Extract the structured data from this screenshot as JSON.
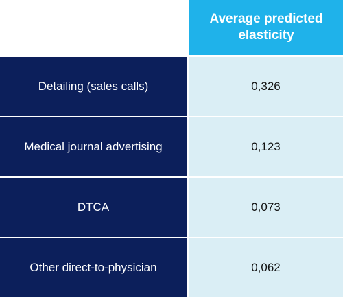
{
  "chart_data": {
    "type": "table",
    "column_header": "Average predicted elasticity",
    "rows": [
      {
        "label": "Detailing (sales calls)",
        "value": "0,326"
      },
      {
        "label": "Medical journal advertising",
        "value": "0,123"
      },
      {
        "label": "DTCA",
        "value": "0,073"
      },
      {
        "label": "Other direct-to-physician",
        "value": "0,062"
      }
    ]
  },
  "colors": {
    "header_bg": "#1fb2ea",
    "label_bg": "#0c1f5b",
    "value_bg": "#daeef5"
  }
}
